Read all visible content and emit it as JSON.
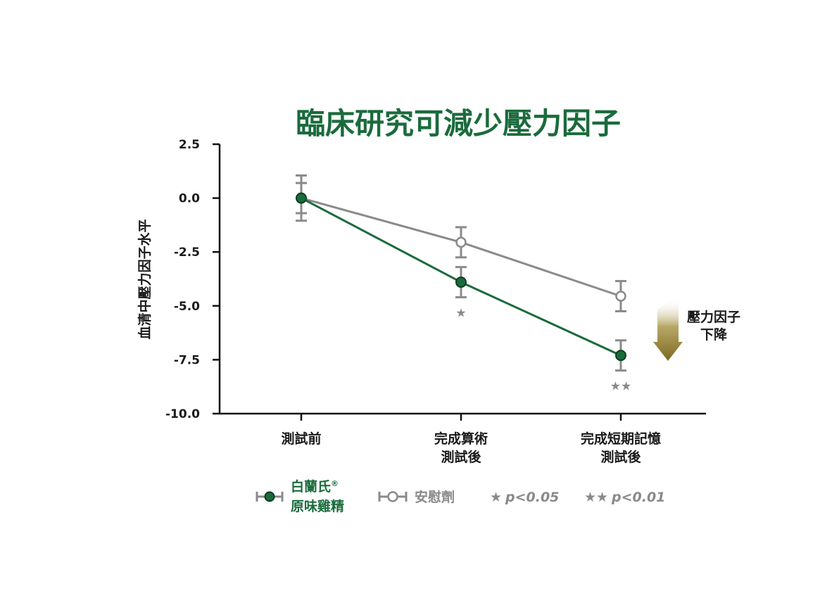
{
  "chart_data": {
    "type": "line",
    "title": "臨床研究可減少壓力因子",
    "ylabel": "血清中壓力因子水平",
    "ylim": [
      -10.0,
      2.5
    ],
    "yticks": [
      "2.5",
      "0.0",
      "-2.5",
      "-5.0",
      "-7.5",
      "-10.0"
    ],
    "ytick_values": [
      2.5,
      0.0,
      -2.5,
      -5.0,
      -7.5,
      -10.0
    ],
    "categories": [
      [
        "測試前"
      ],
      [
        "完成算術",
        "測試後"
      ],
      [
        "完成短期記憶",
        "測試後"
      ]
    ],
    "series": [
      {
        "name_line1": "白蘭氏",
        "name_sup": "®",
        "name_line2": "原味雞精",
        "color": "#1a6b3c",
        "marker": "filled",
        "values": [
          0.0,
          -3.9,
          -7.3
        ],
        "errors": [
          0.7,
          0.7,
          0.7
        ],
        "significance": [
          "",
          "★",
          "★★"
        ]
      },
      {
        "name": "安慰劑",
        "color": "#8a8a8a",
        "marker": "open",
        "values": [
          0.0,
          -2.05,
          -4.55
        ],
        "errors": [
          1.05,
          0.7,
          0.7
        ]
      }
    ],
    "legend_position": "bottom",
    "legend_notes": [
      {
        "star": "★",
        "label": "p<0.05"
      },
      {
        "star": "★★",
        "label": "p<0.01"
      }
    ],
    "annotation": {
      "lines": [
        "壓力因子",
        "下降"
      ],
      "arrow_color": "#8f7b2e"
    },
    "grid": false
  }
}
